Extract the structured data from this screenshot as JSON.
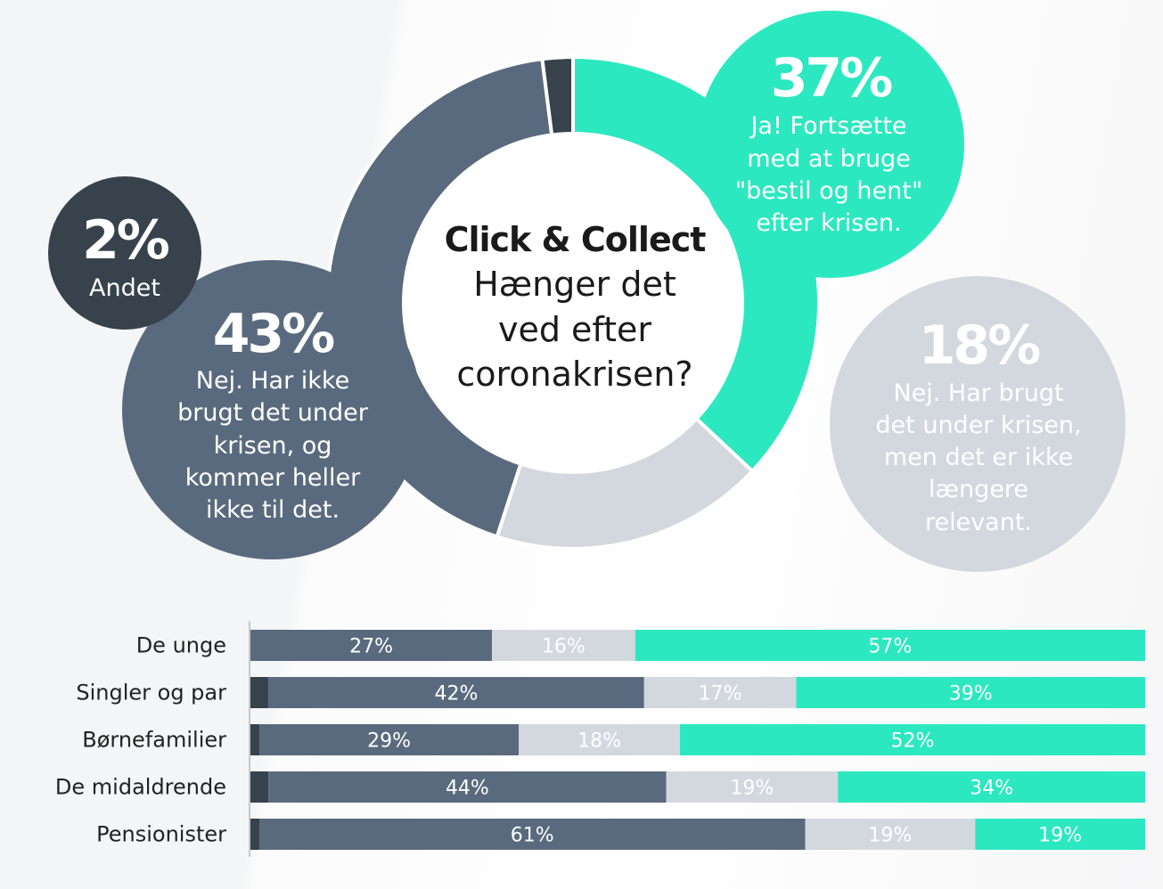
{
  "colors": {
    "andet": "#37424c",
    "nej_ikke_brugt": "#5a6a7e",
    "nej_brugt": "#d3d8df",
    "ja": "#2ce8c0",
    "center_text": "#1a1a1a"
  },
  "center": {
    "line1": "Click & Collect",
    "line2": "Hænger det",
    "line3": "ved efter",
    "line4": "coronakrisen?"
  },
  "bubbles": {
    "ja": {
      "pct": "37%",
      "lines": [
        "Ja! Fortsætte",
        "med at bruge",
        "\"bestil og hent\"",
        "efter krisen."
      ]
    },
    "nej_brugt": {
      "pct": "18%",
      "lines": [
        "Nej. Har brugt",
        "det under krisen,",
        "men det er ikke",
        "længere",
        "relevant."
      ]
    },
    "nej_ikke_brugt": {
      "pct": "43%",
      "lines": [
        "Nej. Har ikke",
        "brugt det under",
        "krisen, og",
        "kommer heller",
        "ikke til det."
      ]
    },
    "andet": {
      "pct": "2%",
      "lines": [
        "Andet"
      ]
    }
  },
  "chart_data": [
    {
      "type": "pie",
      "donut": true,
      "start": "top, clockwise",
      "slices": [
        {
          "key": "ja",
          "value": 37
        },
        {
          "key": "nej_brugt",
          "value": 18
        },
        {
          "key": "nej_ikke_brugt",
          "value": 43
        },
        {
          "key": "andet",
          "value": 2
        }
      ]
    },
    {
      "type": "bar",
      "orientation": "horizontal",
      "stacked": true,
      "categories": [
        "De unge",
        "Singler og par",
        "Børnefamilier",
        "De midaldrende",
        "Pensionister"
      ],
      "series": [
        {
          "key": "andet",
          "values": [
            0,
            2,
            1,
            2,
            1
          ]
        },
        {
          "key": "nej_ikke_brugt",
          "values": [
            27,
            42,
            29,
            44,
            61
          ]
        },
        {
          "key": "nej_brugt",
          "values": [
            16,
            17,
            18,
            19,
            19
          ]
        },
        {
          "key": "ja",
          "values": [
            57,
            39,
            52,
            34,
            19
          ]
        }
      ],
      "data_labels": [
        [
          "",
          "27%",
          "16%",
          "57%"
        ],
        [
          "",
          "42%",
          "17%",
          "39%"
        ],
        [
          "",
          "29%",
          "18%",
          "52%"
        ],
        [
          "",
          "44%",
          "19%",
          "34%"
        ],
        [
          "",
          "61%",
          "19%",
          "19%"
        ]
      ]
    }
  ]
}
